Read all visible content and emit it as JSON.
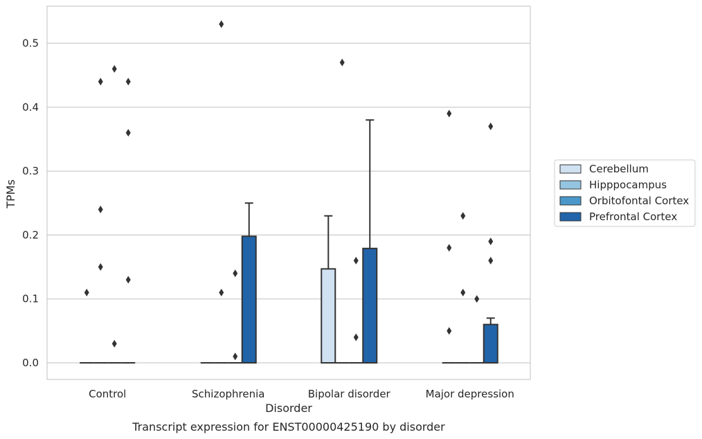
{
  "chart_data": {
    "type": "bar",
    "caption": "Transcript expression for ENST00000425190 by disorder",
    "xlabel": "Disorder",
    "ylabel": "TPMs",
    "ylim": [
      -0.026,
      0.558
    ],
    "yticks": [
      "0.0",
      "0.1",
      "0.2",
      "0.3",
      "0.4",
      "0.5"
    ],
    "ytick_values": [
      0,
      0.1,
      0.2,
      0.3,
      0.4,
      0.5
    ],
    "grid": "horizontal",
    "legend_position": "right",
    "categories": [
      "Control",
      "Schizophrenia",
      "Bipolar disorder",
      "Major depression"
    ],
    "series": [
      {
        "name": "Cerebellum",
        "color": "#d0e1f2",
        "values": [
          0.0,
          0.0,
          0.147,
          0.0
        ],
        "error_upper": [
          null,
          null,
          0.23,
          null
        ],
        "outliers": [
          [
            0.11
          ],
          [],
          [],
          [
            0.05,
            0.18,
            0.39
          ]
        ]
      },
      {
        "name": "Hipppocampus",
        "color": "#94c4df",
        "values": [
          0.0,
          0.0,
          0.0,
          0.0
        ],
        "error_upper": [
          null,
          null,
          null,
          null
        ],
        "outliers": [
          [
            0.15,
            0.24,
            0.44
          ],
          [
            0.11,
            0.53
          ],
          [
            0.47
          ],
          [
            0.11,
            0.23
          ]
        ]
      },
      {
        "name": "Orbitofontal Cortex",
        "color": "#4a98c9",
        "values": [
          0.0,
          0.0,
          0.0,
          0.0
        ],
        "error_upper": [
          null,
          null,
          null,
          null
        ],
        "outliers": [
          [
            0.03,
            0.46
          ],
          [
            0.01,
            0.14
          ],
          [
            0.04,
            0.16
          ],
          [
            0.1
          ]
        ]
      },
      {
        "name": "Prefrontal Cortex",
        "color": "#2264a9",
        "values": [
          0.0,
          0.198,
          0.179,
          0.06
        ],
        "error_upper": [
          null,
          0.25,
          0.38,
          0.07
        ],
        "outliers": [
          [
            0.13,
            0.36,
            0.44
          ],
          [],
          [],
          [
            0.16,
            0.19,
            0.37
          ]
        ]
      }
    ]
  }
}
